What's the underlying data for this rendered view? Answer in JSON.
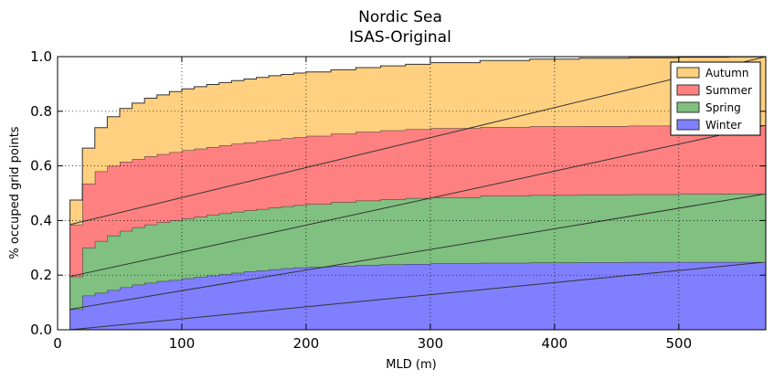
{
  "chart_data": {
    "type": "area",
    "stacked": true,
    "step": true,
    "title": "Nordic Sea",
    "subtitle": "ISAS-Original",
    "xlabel": "MLD (m)",
    "ylabel": "% occuped grid points",
    "xlim": [
      0,
      570
    ],
    "ylim": [
      0.0,
      1.0
    ],
    "xticks": [
      0,
      100,
      200,
      300,
      400,
      500
    ],
    "yticks": [
      0.0,
      0.2,
      0.4,
      0.6,
      0.8,
      1.0
    ],
    "xtick_labels": [
      "0",
      "100",
      "200",
      "300",
      "400",
      "500"
    ],
    "ytick_labels": [
      "0.0",
      "0.2",
      "0.4",
      "0.6",
      "0.8",
      "1.0"
    ],
    "grid": true,
    "legend_position": "top-right",
    "x": [
      10,
      20,
      30,
      40,
      50,
      60,
      70,
      80,
      90,
      100,
      110,
      120,
      130,
      140,
      150,
      160,
      170,
      180,
      190,
      200,
      220,
      240,
      260,
      280,
      300,
      340,
      380,
      420,
      460,
      500,
      540,
      570
    ],
    "series": [
      {
        "name": "Winter",
        "color": "#8080ff",
        "values": [
          0.075,
          0.125,
          0.135,
          0.145,
          0.155,
          0.165,
          0.172,
          0.178,
          0.182,
          0.188,
          0.193,
          0.198,
          0.203,
          0.208,
          0.213,
          0.217,
          0.221,
          0.225,
          0.228,
          0.23,
          0.234,
          0.237,
          0.239,
          0.241,
          0.243,
          0.245,
          0.246,
          0.247,
          0.248,
          0.248,
          0.248,
          0.248
        ]
      },
      {
        "name": "Spring",
        "color": "#80c080",
        "values": [
          0.195,
          0.3,
          0.325,
          0.345,
          0.362,
          0.375,
          0.385,
          0.393,
          0.4,
          0.407,
          0.413,
          0.42,
          0.426,
          0.432,
          0.437,
          0.442,
          0.447,
          0.452,
          0.456,
          0.46,
          0.467,
          0.473,
          0.478,
          0.482,
          0.485,
          0.49,
          0.493,
          0.495,
          0.496,
          0.497,
          0.498,
          0.498
        ]
      },
      {
        "name": "Summer",
        "color": "#ff8080",
        "values": [
          0.385,
          0.535,
          0.58,
          0.6,
          0.615,
          0.625,
          0.635,
          0.643,
          0.65,
          0.657,
          0.663,
          0.669,
          0.675,
          0.681,
          0.686,
          0.691,
          0.696,
          0.701,
          0.705,
          0.71,
          0.718,
          0.725,
          0.73,
          0.734,
          0.738,
          0.742,
          0.745,
          0.746,
          0.747,
          0.748,
          0.749,
          0.749
        ]
      },
      {
        "name": "Autumn",
        "color": "#ffd080",
        "values": [
          0.475,
          0.665,
          0.74,
          0.78,
          0.81,
          0.83,
          0.848,
          0.86,
          0.872,
          0.882,
          0.89,
          0.898,
          0.905,
          0.912,
          0.918,
          0.924,
          0.93,
          0.935,
          0.94,
          0.944,
          0.952,
          0.96,
          0.966,
          0.972,
          0.978,
          0.986,
          0.991,
          0.994,
          0.996,
          0.998,
          0.999,
          1.0
        ]
      }
    ],
    "legend_order": [
      "Autumn",
      "Summer",
      "Spring",
      "Winter"
    ]
  }
}
